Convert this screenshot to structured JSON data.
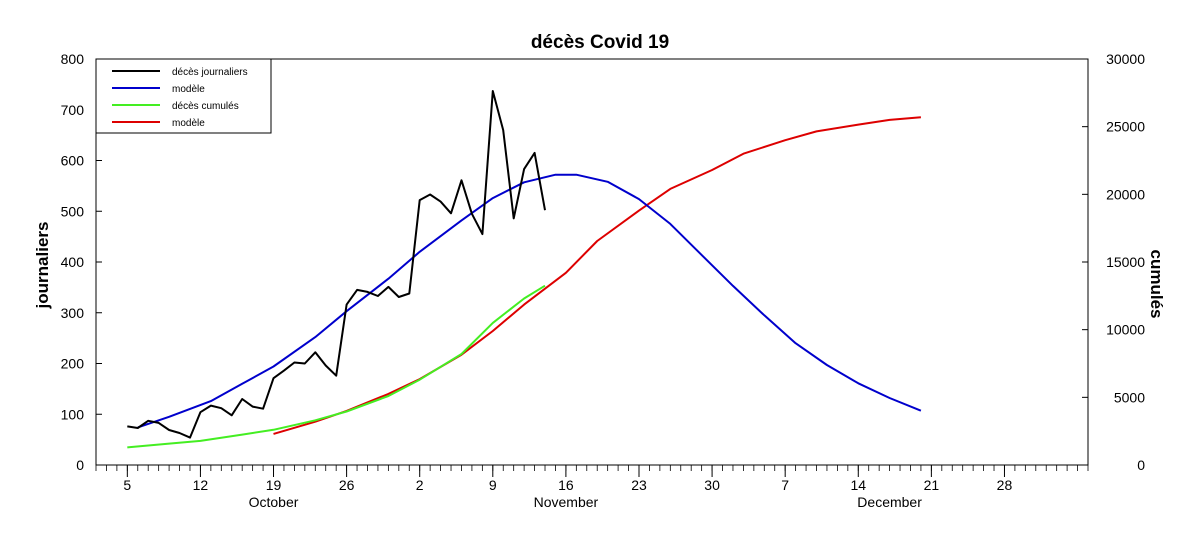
{
  "chart_data": {
    "type": "line",
    "title": "décès Covid 19",
    "ylabel": "journaliers",
    "y2label": "cumulés",
    "ylim": [
      0,
      800
    ],
    "y2lim": [
      0,
      30000
    ],
    "yticks": [
      0,
      100,
      200,
      300,
      400,
      500,
      600,
      700,
      800
    ],
    "y2ticks": [
      0,
      5000,
      10000,
      15000,
      20000,
      25000,
      30000
    ],
    "xrange": [
      "2020-10-02",
      "2021-01-05"
    ],
    "xticks": [
      {
        "date": "2020-10-05",
        "label": "5"
      },
      {
        "date": "2020-10-12",
        "label": "12"
      },
      {
        "date": "2020-10-19",
        "label": "19"
      },
      {
        "date": "2020-10-26",
        "label": "26"
      },
      {
        "date": "2020-11-02",
        "label": "2"
      },
      {
        "date": "2020-11-09",
        "label": "9"
      },
      {
        "date": "2020-11-16",
        "label": "16"
      },
      {
        "date": "2020-11-23",
        "label": "23"
      },
      {
        "date": "2020-11-30",
        "label": "30"
      },
      {
        "date": "2020-12-07",
        "label": "7"
      },
      {
        "date": "2020-12-14",
        "label": "14"
      },
      {
        "date": "2020-12-21",
        "label": "21"
      },
      {
        "date": "2020-12-28",
        "label": "28"
      }
    ],
    "months": [
      {
        "label": "October",
        "date": "2020-10-19"
      },
      {
        "label": "November",
        "date": "2020-11-16"
      },
      {
        "label": "December",
        "date": "2020-12-17"
      }
    ],
    "legend_position": "top-left",
    "grid": false,
    "series": [
      {
        "name": "décès journaliers",
        "color": "#000000",
        "axis": "left",
        "points": [
          [
            "2020-10-05",
            76
          ],
          [
            "2020-10-06",
            73
          ],
          [
            "2020-10-07",
            87
          ],
          [
            "2020-10-08",
            83
          ],
          [
            "2020-10-09",
            69
          ],
          [
            "2020-10-10",
            63
          ],
          [
            "2020-10-11",
            54
          ],
          [
            "2020-10-12",
            104
          ],
          [
            "2020-10-13",
            117
          ],
          [
            "2020-10-14",
            112
          ],
          [
            "2020-10-15",
            98
          ],
          [
            "2020-10-16",
            130
          ],
          [
            "2020-10-17",
            115
          ],
          [
            "2020-10-18",
            111
          ],
          [
            "2020-10-19",
            171
          ],
          [
            "2020-10-20",
            186
          ],
          [
            "2020-10-21",
            202
          ],
          [
            "2020-10-22",
            200
          ],
          [
            "2020-10-23",
            222
          ],
          [
            "2020-10-24",
            196
          ],
          [
            "2020-10-25",
            176
          ],
          [
            "2020-10-26",
            316
          ],
          [
            "2020-10-27",
            345
          ],
          [
            "2020-10-28",
            341
          ],
          [
            "2020-10-29",
            333
          ],
          [
            "2020-10-30",
            351
          ],
          [
            "2020-10-31",
            331
          ],
          [
            "2020-11-01",
            338
          ],
          [
            "2020-11-02",
            522
          ],
          [
            "2020-11-03",
            533
          ],
          [
            "2020-11-04",
            519
          ],
          [
            "2020-11-05",
            496
          ],
          [
            "2020-11-06",
            561
          ],
          [
            "2020-11-07",
            495
          ],
          [
            "2020-11-08",
            455
          ],
          [
            "2020-11-09",
            737
          ],
          [
            "2020-11-10",
            660
          ],
          [
            "2020-11-11",
            486
          ],
          [
            "2020-11-12",
            583
          ],
          [
            "2020-11-13",
            615
          ],
          [
            "2020-11-14",
            502
          ]
        ]
      },
      {
        "name": "modèle",
        "color": "#0000cc",
        "axis": "left",
        "points": [
          [
            "2020-10-06",
            74
          ],
          [
            "2020-10-09",
            95
          ],
          [
            "2020-10-13",
            126
          ],
          [
            "2020-10-16",
            160
          ],
          [
            "2020-10-19",
            194
          ],
          [
            "2020-10-23",
            252
          ],
          [
            "2020-10-26",
            303
          ],
          [
            "2020-10-30",
            367
          ],
          [
            "2020-11-02",
            420
          ],
          [
            "2020-11-06",
            482
          ],
          [
            "2020-11-09",
            526
          ],
          [
            "2020-11-12",
            557
          ],
          [
            "2020-11-15",
            572
          ],
          [
            "2020-11-17",
            572
          ],
          [
            "2020-11-20",
            558
          ],
          [
            "2020-11-23",
            524
          ],
          [
            "2020-11-26",
            475
          ],
          [
            "2020-11-29",
            414
          ],
          [
            "2020-12-02",
            353
          ],
          [
            "2020-12-05",
            295
          ],
          [
            "2020-12-08",
            240
          ],
          [
            "2020-12-11",
            197
          ],
          [
            "2020-12-14",
            161
          ],
          [
            "2020-12-17",
            132
          ],
          [
            "2020-12-20",
            107
          ]
        ]
      },
      {
        "name": "décès cumulés",
        "color": "#44ee22",
        "axis": "right",
        "points": [
          [
            "2020-10-05",
            1300
          ],
          [
            "2020-10-09",
            1580
          ],
          [
            "2020-10-12",
            1780
          ],
          [
            "2020-10-16",
            2250
          ],
          [
            "2020-10-19",
            2600
          ],
          [
            "2020-10-23",
            3300
          ],
          [
            "2020-10-26",
            3950
          ],
          [
            "2020-10-30",
            5100
          ],
          [
            "2020-11-02",
            6300
          ],
          [
            "2020-11-06",
            8200
          ],
          [
            "2020-11-09",
            10500
          ],
          [
            "2020-11-12",
            12300
          ],
          [
            "2020-11-14",
            13250
          ]
        ]
      },
      {
        "name": "modèle",
        "color": "#dd0000",
        "axis": "right",
        "points": [
          [
            "2020-10-19",
            2300
          ],
          [
            "2020-10-23",
            3200
          ],
          [
            "2020-10-26",
            4000
          ],
          [
            "2020-10-30",
            5250
          ],
          [
            "2020-11-02",
            6350
          ],
          [
            "2020-11-06",
            8150
          ],
          [
            "2020-11-09",
            9900
          ],
          [
            "2020-11-12",
            11850
          ],
          [
            "2020-11-16",
            14200
          ],
          [
            "2020-11-19",
            16550
          ],
          [
            "2020-11-23",
            18800
          ],
          [
            "2020-11-26",
            20400
          ],
          [
            "2020-11-30",
            21800
          ],
          [
            "2020-12-03",
            23000
          ],
          [
            "2020-12-07",
            24000
          ],
          [
            "2020-12-10",
            24650
          ],
          [
            "2020-12-14",
            25150
          ],
          [
            "2020-12-17",
            25500
          ],
          [
            "2020-12-20",
            25700
          ]
        ]
      }
    ]
  }
}
